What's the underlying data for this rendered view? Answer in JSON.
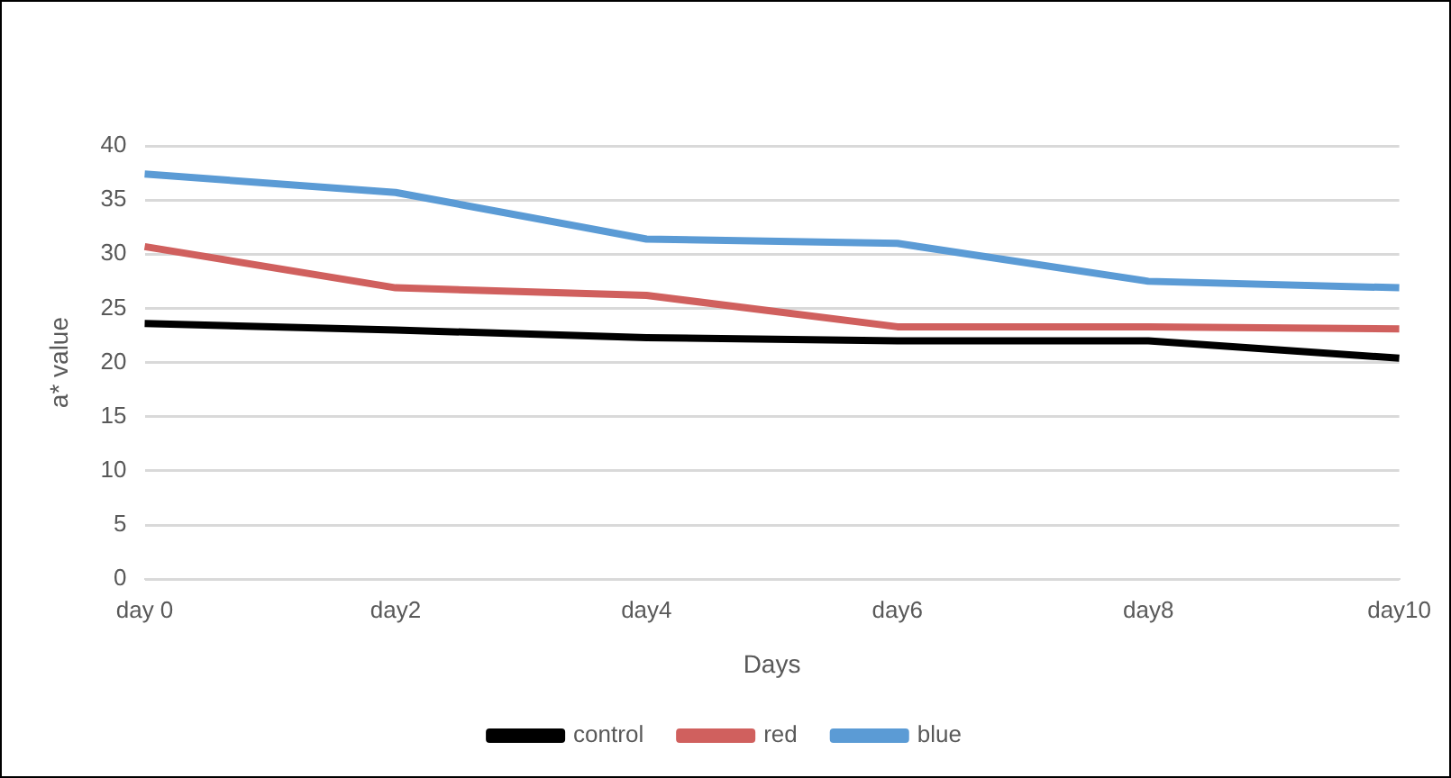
{
  "chart_data": {
    "type": "line",
    "xlabel": "Days",
    "ylabel": "a* value",
    "categories": [
      "day 0",
      "day2",
      "day4",
      "day6",
      "day8",
      "day10"
    ],
    "series": [
      {
        "name": "control",
        "color": "#000000",
        "values": [
          23.6,
          23.0,
          22.3,
          22.0,
          22.0,
          20.4
        ]
      },
      {
        "name": "red",
        "color": "#d0605e",
        "values": [
          30.7,
          26.9,
          26.2,
          23.3,
          23.3,
          23.1
        ]
      },
      {
        "name": "blue",
        "color": "#5b9bd5",
        "values": [
          37.4,
          35.7,
          31.4,
          31.0,
          27.5,
          26.9
        ]
      }
    ],
    "ylim": [
      0,
      40
    ],
    "yticks": [
      0,
      5,
      10,
      15,
      20,
      25,
      30,
      35,
      40
    ],
    "grid": "y",
    "legend": "bottom",
    "marker": "none",
    "line_style": "solid"
  }
}
